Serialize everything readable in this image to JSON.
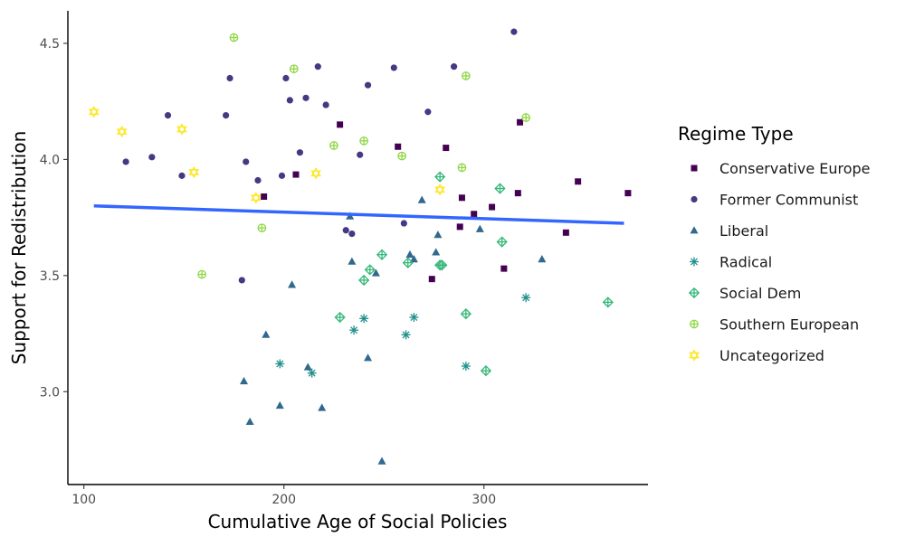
{
  "chart_data": {
    "type": "scatter",
    "xlabel": "Cumulative Age of Social Policies",
    "ylabel": "Support for Redistribution",
    "xlim": [
      92,
      382
    ],
    "ylim": [
      2.6,
      4.64
    ],
    "x_ticks": [
      100,
      200,
      300
    ],
    "y_ticks": [
      3.0,
      3.5,
      4.0,
      4.5
    ],
    "y_tick_labels": [
      "3.0",
      "3.5",
      "4.0",
      "4.5"
    ],
    "grid": false,
    "legend": {
      "title": "Regime Type",
      "placement": "right"
    },
    "trend_line": {
      "color": "#3366ff",
      "points": [
        [
          105,
          3.8
        ],
        [
          370,
          3.725
        ]
      ]
    },
    "series": [
      {
        "name": "Conservative Europe",
        "marker": "square",
        "color": "#440154",
        "points": [
          [
            190,
            3.84
          ],
          [
            206,
            3.935
          ],
          [
            228,
            4.15
          ],
          [
            257,
            4.055
          ],
          [
            274,
            3.485
          ],
          [
            281,
            4.05
          ],
          [
            288,
            3.71
          ],
          [
            289,
            3.835
          ],
          [
            295,
            3.765
          ],
          [
            304,
            3.795
          ],
          [
            310,
            3.53
          ],
          [
            317,
            3.855
          ],
          [
            318,
            4.16
          ],
          [
            341,
            3.685
          ],
          [
            347,
            3.905
          ],
          [
            372,
            3.855
          ]
        ]
      },
      {
        "name": "Former Communist",
        "marker": "circle",
        "color": "#443a83",
        "points": [
          [
            121,
            3.99
          ],
          [
            134,
            4.01
          ],
          [
            142,
            4.19
          ],
          [
            149,
            3.93
          ],
          [
            171,
            4.19
          ],
          [
            173,
            4.35
          ],
          [
            179,
            3.48
          ],
          [
            181,
            3.99
          ],
          [
            187,
            3.91
          ],
          [
            199,
            3.93
          ],
          [
            201,
            4.35
          ],
          [
            203,
            4.255
          ],
          [
            208,
            4.03
          ],
          [
            211,
            4.265
          ],
          [
            217,
            4.4
          ],
          [
            221,
            4.235
          ],
          [
            231,
            3.695
          ],
          [
            234,
            3.68
          ],
          [
            238,
            4.02
          ],
          [
            242,
            4.32
          ],
          [
            255,
            4.395
          ],
          [
            260,
            3.725
          ],
          [
            272,
            4.205
          ],
          [
            285,
            4.4
          ],
          [
            315,
            4.55
          ]
        ]
      },
      {
        "name": "Liberal",
        "marker": "triangle",
        "color": "#31688e",
        "points": [
          [
            180,
            3.045
          ],
          [
            183,
            2.87
          ],
          [
            191,
            3.245
          ],
          [
            198,
            2.94
          ],
          [
            204,
            3.46
          ],
          [
            212,
            3.105
          ],
          [
            219,
            2.93
          ],
          [
            233,
            3.755
          ],
          [
            234,
            3.56
          ],
          [
            242,
            3.145
          ],
          [
            246,
            3.51
          ],
          [
            249,
            2.7
          ],
          [
            263,
            3.59
          ],
          [
            265,
            3.57
          ],
          [
            269,
            3.825
          ],
          [
            276,
            3.6
          ],
          [
            277,
            3.675
          ],
          [
            298,
            3.7
          ],
          [
            329,
            3.57
          ]
        ]
      },
      {
        "name": "Radical",
        "marker": "asterisk",
        "color": "#21908d",
        "points": [
          [
            198,
            3.12
          ],
          [
            214,
            3.08
          ],
          [
            235,
            3.265
          ],
          [
            240,
            3.315
          ],
          [
            261,
            3.245
          ],
          [
            265,
            3.32
          ],
          [
            291,
            3.11
          ],
          [
            321,
            3.405
          ]
        ]
      },
      {
        "name": "Social Dem",
        "marker": "diamond-plus",
        "color": "#35b779",
        "points": [
          [
            228,
            3.32
          ],
          [
            240,
            3.48
          ],
          [
            243,
            3.525
          ],
          [
            249,
            3.59
          ],
          [
            262,
            3.555
          ],
          [
            278,
            3.545
          ],
          [
            278,
            3.925
          ],
          [
            279,
            3.545
          ],
          [
            291,
            3.335
          ],
          [
            301,
            3.09
          ],
          [
            308,
            3.875
          ],
          [
            309,
            3.645
          ],
          [
            362,
            3.385
          ]
        ]
      },
      {
        "name": "Southern European",
        "marker": "circle-plus",
        "color": "#8fd744",
        "points": [
          [
            159,
            3.505
          ],
          [
            175,
            4.525
          ],
          [
            189,
            3.705
          ],
          [
            205,
            4.39
          ],
          [
            225,
            4.06
          ],
          [
            240,
            4.08
          ],
          [
            259,
            4.015
          ],
          [
            289,
            3.965
          ],
          [
            291,
            4.36
          ],
          [
            321,
            4.18
          ]
        ]
      },
      {
        "name": "Uncategorized",
        "marker": "star",
        "color": "#fde725",
        "points": [
          [
            105,
            4.205
          ],
          [
            119,
            4.12
          ],
          [
            149,
            4.13
          ],
          [
            155,
            3.945
          ],
          [
            186,
            3.835
          ],
          [
            216,
            3.94
          ],
          [
            278,
            3.87
          ]
        ]
      }
    ]
  }
}
